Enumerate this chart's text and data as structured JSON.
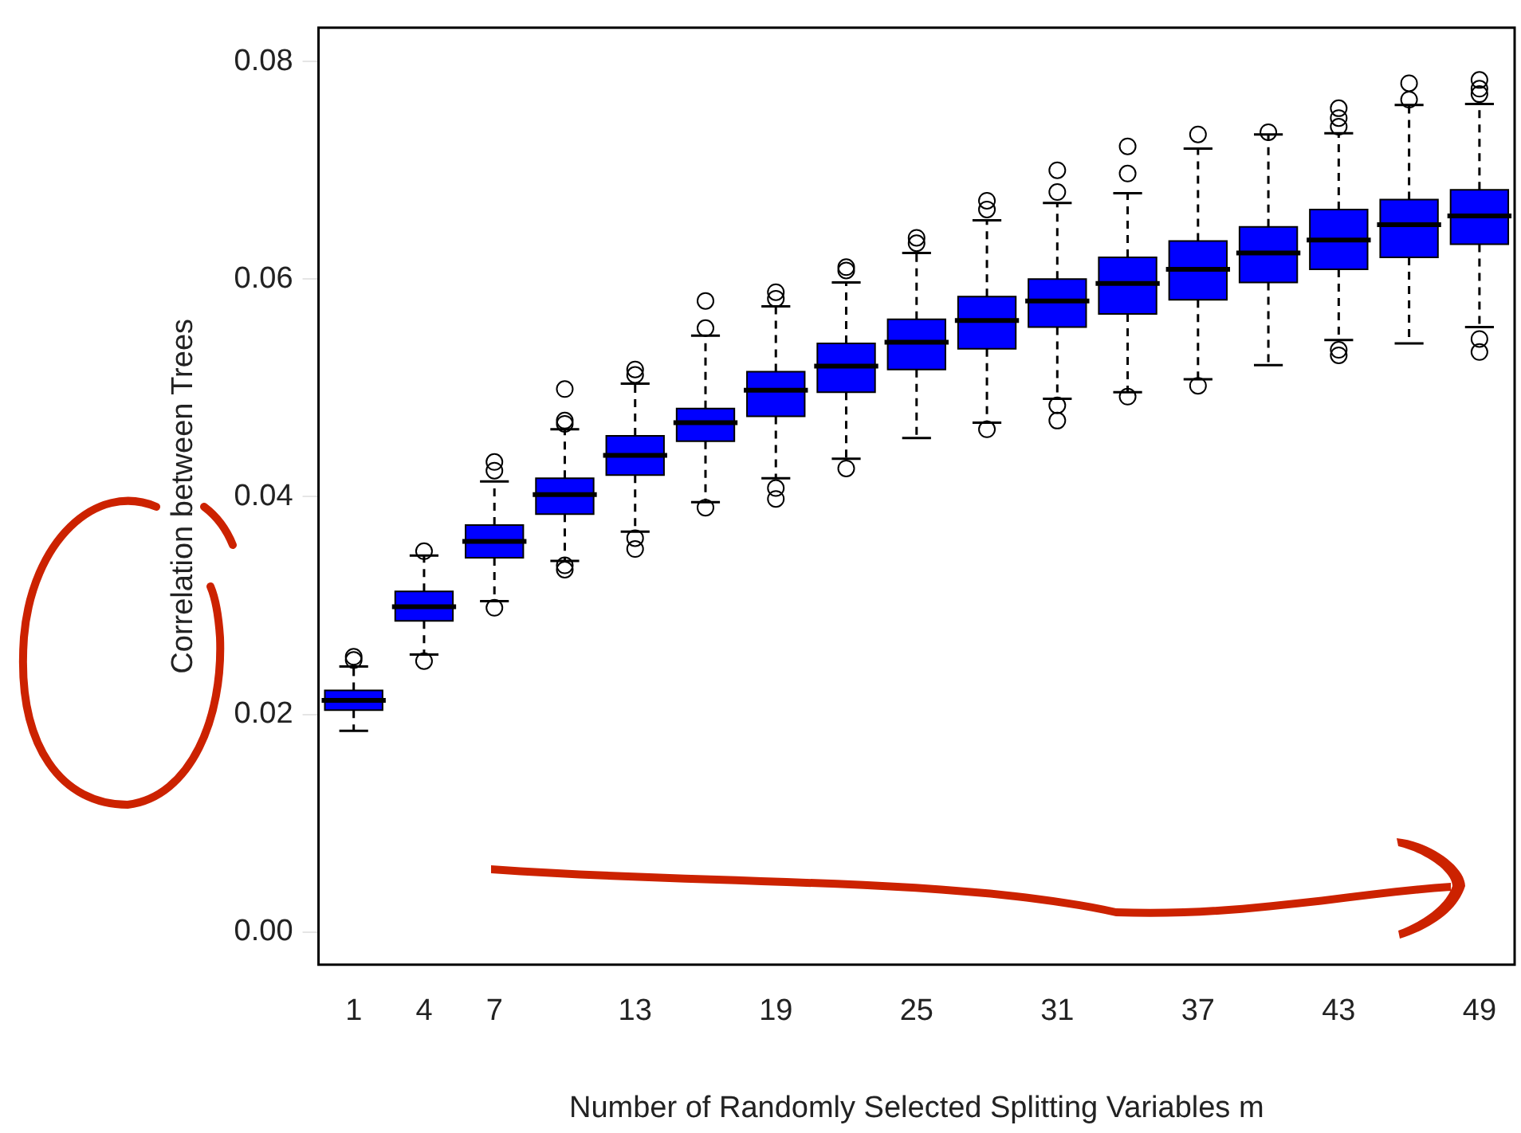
{
  "chart_data": {
    "type": "box",
    "xlabel": "Number of Randomly Selected Splitting Variables m",
    "ylabel": "Correlation between Trees",
    "categories": [
      "1",
      "4",
      "7",
      null,
      "13",
      null,
      "19",
      null,
      "25",
      null,
      "31",
      null,
      "37",
      null,
      "43",
      null,
      "49"
    ],
    "color": "#0000ff",
    "ylim": [
      -0.003,
      0.0831
    ],
    "yticks": [
      {
        "value": 0,
        "label": "0.00"
      },
      {
        "value": 0.02,
        "label": "0.02"
      },
      {
        "value": 0.04,
        "label": "0.04"
      },
      {
        "value": 0.06,
        "label": "0.06"
      },
      {
        "value": 0.08,
        "label": "0.08"
      }
    ],
    "grid": false,
    "legend": false,
    "boxes": [
      {
        "low": 0.0185,
        "q1": 0.0204,
        "median": 0.0213,
        "q3": 0.0222,
        "high": 0.0244,
        "outliers": [
          0.025,
          0.0253
        ]
      },
      {
        "low": 0.0255,
        "q1": 0.0286,
        "median": 0.0299,
        "q3": 0.0313,
        "high": 0.0346,
        "outliers": [
          0.035,
          0.0249
        ]
      },
      {
        "low": 0.0304,
        "q1": 0.0344,
        "median": 0.0359,
        "q3": 0.0374,
        "high": 0.0414,
        "outliers": [
          0.0424,
          0.0432,
          0.0298
        ]
      },
      {
        "low": 0.0341,
        "q1": 0.0384,
        "median": 0.0402,
        "q3": 0.0417,
        "high": 0.0462,
        "outliers": [
          0.0499,
          0.047,
          0.0467,
          0.0337,
          0.0333
        ]
      },
      {
        "low": 0.0368,
        "q1": 0.042,
        "median": 0.0438,
        "q3": 0.0456,
        "high": 0.0504,
        "outliers": [
          0.0517,
          0.0512,
          0.0362,
          0.0352
        ]
      },
      {
        "low": 0.0395,
        "q1": 0.0451,
        "median": 0.0468,
        "q3": 0.0481,
        "high": 0.0548,
        "outliers": [
          0.058,
          0.0555,
          0.039
        ]
      },
      {
        "low": 0.0417,
        "q1": 0.0474,
        "median": 0.0498,
        "q3": 0.0515,
        "high": 0.0575,
        "outliers": [
          0.0588,
          0.0582,
          0.0408,
          0.0398
        ]
      },
      {
        "low": 0.0435,
        "q1": 0.0496,
        "median": 0.052,
        "q3": 0.0541,
        "high": 0.0597,
        "outliers": [
          0.0608,
          0.0611,
          0.0426
        ]
      },
      {
        "low": 0.0454,
        "q1": 0.0517,
        "median": 0.0542,
        "q3": 0.0563,
        "high": 0.0624,
        "outliers": [
          0.0638,
          0.0633
        ]
      },
      {
        "low": 0.0468,
        "q1": 0.0536,
        "median": 0.0562,
        "q3": 0.0584,
        "high": 0.0654,
        "outliers": [
          0.0672,
          0.0664,
          0.0462
        ]
      },
      {
        "low": 0.049,
        "q1": 0.0556,
        "median": 0.058,
        "q3": 0.06,
        "high": 0.067,
        "outliers": [
          0.07,
          0.068,
          0.0484,
          0.047
        ]
      },
      {
        "low": 0.0496,
        "q1": 0.0568,
        "median": 0.0596,
        "q3": 0.062,
        "high": 0.0679,
        "outliers": [
          0.0722,
          0.0697,
          0.0492
        ]
      },
      {
        "low": 0.0508,
        "q1": 0.0581,
        "median": 0.0609,
        "q3": 0.0635,
        "high": 0.072,
        "outliers": [
          0.0733,
          0.0502
        ]
      },
      {
        "low": 0.0521,
        "q1": 0.0597,
        "median": 0.0624,
        "q3": 0.0648,
        "high": 0.0733,
        "outliers": [
          0.0735
        ]
      },
      {
        "low": 0.0544,
        "q1": 0.0609,
        "median": 0.0636,
        "q3": 0.0664,
        "high": 0.0734,
        "outliers": [
          0.0757,
          0.0748,
          0.074,
          0.0535,
          0.053
        ]
      },
      {
        "low": 0.0541,
        "q1": 0.062,
        "median": 0.065,
        "q3": 0.0673,
        "high": 0.076,
        "outliers": [
          0.078,
          0.0765
        ]
      },
      {
        "low": 0.0556,
        "q1": 0.0632,
        "median": 0.0658,
        "q3": 0.0682,
        "high": 0.0761,
        "outliers": [
          0.0783,
          0.0775,
          0.077,
          0.0545,
          0.0533
        ]
      }
    ]
  }
}
